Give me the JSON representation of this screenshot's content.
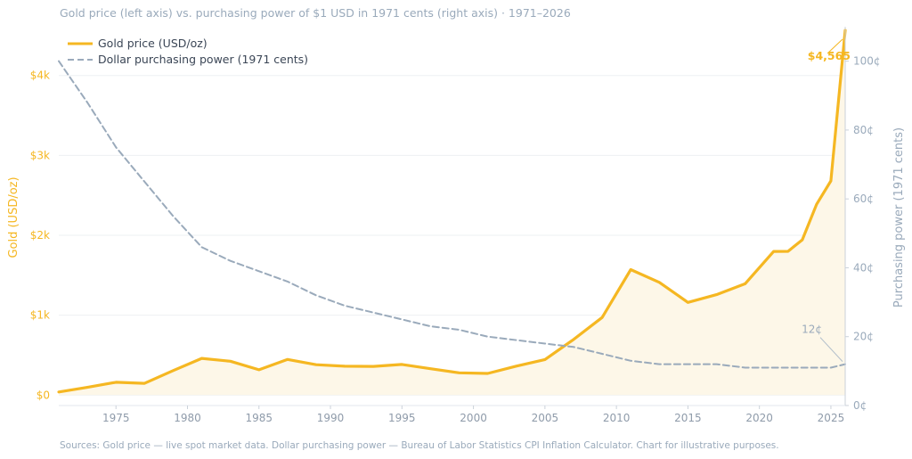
{
  "chart_data": {
    "type": "line",
    "title": "Gold price (left axis) vs. purchasing power of $1 USD in 1971 cents (right axis) · 1971–2026",
    "footer": "Sources: Gold price — live spot market data.  Dollar purchasing power — Bureau of Labor Statistics CPI Inflation Calculator.  Chart for illustrative purposes.",
    "xlim": [
      1971,
      2026
    ],
    "x_ticks": [
      1975,
      1980,
      1985,
      1990,
      1995,
      2000,
      2005,
      2010,
      2015,
      2020,
      2025
    ],
    "left_axis": {
      "label": "Gold (USD/oz)",
      "ylim": [
        -130,
        4610
      ],
      "ticks": [
        {
          "value": 0,
          "label": "$0"
        },
        {
          "value": 1000,
          "label": "$1k"
        },
        {
          "value": 2000,
          "label": "$2k"
        },
        {
          "value": 3000,
          "label": "$3k"
        },
        {
          "value": 4000,
          "label": "$4k"
        }
      ],
      "color": "#F5B722"
    },
    "right_axis": {
      "label": "Purchasing power (1971 cents)",
      "ylim": [
        0,
        110
      ],
      "ticks": [
        {
          "value": 0,
          "label": "0¢"
        },
        {
          "value": 20,
          "label": "20¢"
        },
        {
          "value": 40,
          "label": "40¢"
        },
        {
          "value": 60,
          "label": "60¢"
        },
        {
          "value": 80,
          "label": "80¢"
        },
        {
          "value": 100,
          "label": "100¢"
        }
      ],
      "color": "#9AAABB"
    },
    "grid": true,
    "legend": "top-left",
    "series": [
      {
        "name": "Gold price (USD/oz)",
        "axis": "left",
        "color": "#F5B722",
        "style": "solid",
        "fill": "#FDF7E8",
        "x": [
          1971,
          1973,
          1975,
          1977,
          1979,
          1981,
          1983,
          1985,
          1987,
          1989,
          1991,
          1993,
          1995,
          1997,
          1999,
          2001,
          2003,
          2005,
          2007,
          2009,
          2011,
          2013,
          2015,
          2017,
          2019,
          2021,
          2022,
          2023,
          2024,
          2025,
          2026
        ],
        "values": [
          40,
          97,
          161,
          148,
          307,
          460,
          424,
          317,
          447,
          381,
          362,
          360,
          384,
          331,
          279,
          271,
          363,
          445,
          696,
          972,
          1571,
          1411,
          1160,
          1257,
          1393,
          1798,
          1800,
          1943,
          2388,
          2680,
          4565
        ]
      },
      {
        "name": "Dollar purchasing power (1971 cents)",
        "axis": "right",
        "color": "#9AAABB",
        "style": "dashed",
        "x": [
          1971,
          1973,
          1975,
          1977,
          1979,
          1981,
          1983,
          1985,
          1987,
          1989,
          1991,
          1993,
          1995,
          1997,
          1999,
          2001,
          2003,
          2005,
          2007,
          2009,
          2011,
          2013,
          2015,
          2017,
          2019,
          2021,
          2022,
          2023,
          2024,
          2025,
          2026
        ],
        "values": [
          100,
          88,
          75,
          65,
          55,
          46,
          42,
          39,
          36,
          32,
          29,
          27,
          25,
          23,
          22,
          20,
          19,
          18,
          17,
          15,
          13,
          12,
          12,
          12,
          11,
          11,
          11,
          11,
          11,
          11,
          12
        ]
      }
    ],
    "annotations": [
      {
        "series": 0,
        "text": "$4,565"
      },
      {
        "series": 1,
        "text": "12¢"
      }
    ]
  }
}
